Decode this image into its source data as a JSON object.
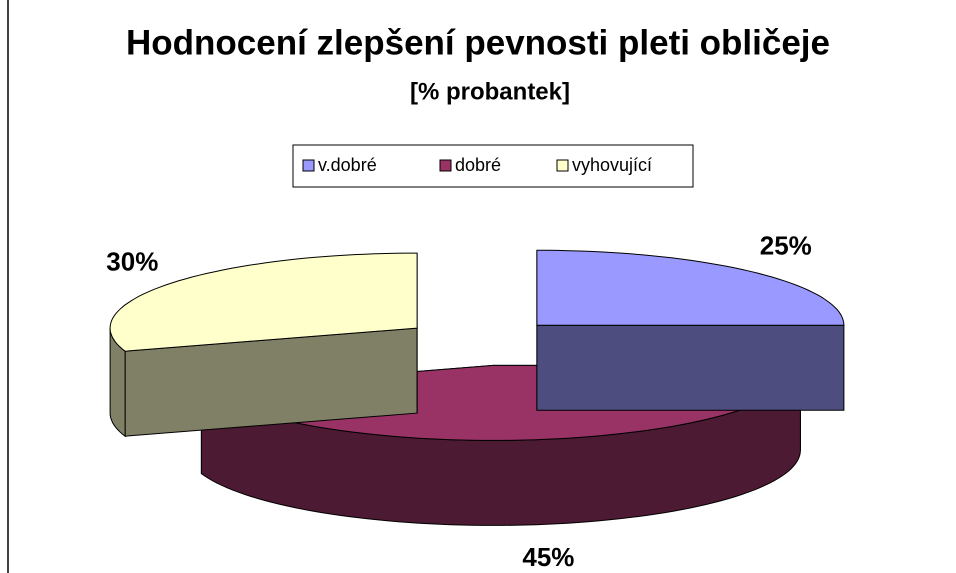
{
  "chart_data": {
    "type": "pie",
    "title": "Hodnocení zlepšení pevnosti pleti obličeje",
    "subtitle": "[% probantek]",
    "categories": [
      "v.dobré",
      "dobré",
      "vyhovující"
    ],
    "values": [
      25,
      45,
      30
    ],
    "value_labels": [
      "25%",
      "45%",
      "30%"
    ],
    "colors": [
      "#9999ff",
      "#993366",
      "#ffffcc"
    ],
    "side_colors": [
      "#4d4d80",
      "#4d1a33",
      "#808066"
    ],
    "legend": "top"
  }
}
